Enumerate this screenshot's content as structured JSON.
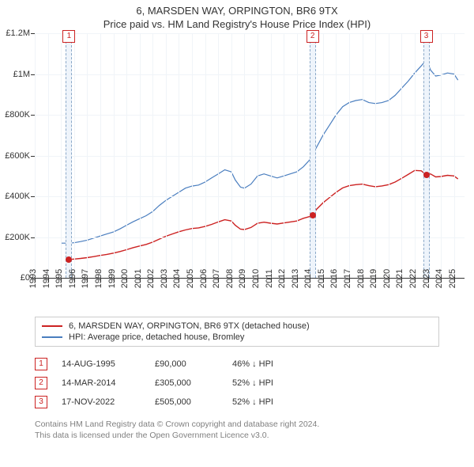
{
  "title": "6, MARSDEN WAY, ORPINGTON, BR6 9TX",
  "subtitle": "Price paid vs. HM Land Registry's House Price Index (HPI)",
  "chart": {
    "type": "line",
    "background_color": "#ffffff",
    "grid_color": "#f0f4f8",
    "axis_color": "#333333",
    "x_start": 1993,
    "x_end": 2025.8,
    "y_min": 0,
    "y_max": 1200000,
    "y_ticks": [
      {
        "v": 0,
        "label": "£0"
      },
      {
        "v": 200000,
        "label": "£200K"
      },
      {
        "v": 400000,
        "label": "£400K"
      },
      {
        "v": 600000,
        "label": "£600K"
      },
      {
        "v": 800000,
        "label": "£800K"
      },
      {
        "v": 1000000,
        "label": "£1M"
      },
      {
        "v": 1200000,
        "label": "£1.2M"
      }
    ],
    "x_ticks": [
      1993,
      1994,
      1995,
      1996,
      1997,
      1998,
      1999,
      2000,
      2001,
      2002,
      2003,
      2004,
      2005,
      2006,
      2007,
      2008,
      2009,
      2010,
      2011,
      2012,
      2013,
      2014,
      2015,
      2016,
      2017,
      2018,
      2019,
      2020,
      2021,
      2022,
      2023,
      2024,
      2025
    ],
    "marker_band_color": "#eef4fb",
    "marker_band_border": "#8aa8c8",
    "marker_badge_color": "#cc2222",
    "series": [
      {
        "name": "hpi",
        "color": "#4a7ebf",
        "width": 1.2,
        "points": [
          [
            1995.0,
            170000
          ],
          [
            1995.5,
            170000
          ],
          [
            1996.0,
            172000
          ],
          [
            1996.5,
            178000
          ],
          [
            1997.0,
            185000
          ],
          [
            1997.5,
            195000
          ],
          [
            1998.0,
            205000
          ],
          [
            1998.5,
            215000
          ],
          [
            1999.0,
            225000
          ],
          [
            1999.5,
            240000
          ],
          [
            2000.0,
            258000
          ],
          [
            2000.5,
            275000
          ],
          [
            2001.0,
            290000
          ],
          [
            2001.5,
            305000
          ],
          [
            2002.0,
            325000
          ],
          [
            2002.5,
            355000
          ],
          [
            2003.0,
            380000
          ],
          [
            2003.5,
            400000
          ],
          [
            2004.0,
            420000
          ],
          [
            2004.5,
            440000
          ],
          [
            2005.0,
            450000
          ],
          [
            2005.5,
            455000
          ],
          [
            2006.0,
            470000
          ],
          [
            2006.5,
            490000
          ],
          [
            2007.0,
            510000
          ],
          [
            2007.5,
            530000
          ],
          [
            2008.0,
            520000
          ],
          [
            2008.3,
            480000
          ],
          [
            2008.7,
            445000
          ],
          [
            2009.0,
            440000
          ],
          [
            2009.5,
            460000
          ],
          [
            2010.0,
            500000
          ],
          [
            2010.5,
            510000
          ],
          [
            2011.0,
            500000
          ],
          [
            2011.5,
            490000
          ],
          [
            2012.0,
            500000
          ],
          [
            2012.5,
            510000
          ],
          [
            2013.0,
            520000
          ],
          [
            2013.5,
            545000
          ],
          [
            2014.0,
            580000
          ],
          [
            2014.5,
            640000
          ],
          [
            2015.0,
            700000
          ],
          [
            2015.5,
            750000
          ],
          [
            2016.0,
            800000
          ],
          [
            2016.5,
            840000
          ],
          [
            2017.0,
            860000
          ],
          [
            2017.5,
            870000
          ],
          [
            2018.0,
            875000
          ],
          [
            2018.5,
            860000
          ],
          [
            2019.0,
            855000
          ],
          [
            2019.5,
            860000
          ],
          [
            2020.0,
            870000
          ],
          [
            2020.5,
            895000
          ],
          [
            2021.0,
            930000
          ],
          [
            2021.5,
            965000
          ],
          [
            2022.0,
            1005000
          ],
          [
            2022.5,
            1040000
          ],
          [
            2022.9,
            1070000
          ],
          [
            2023.2,
            1020000
          ],
          [
            2023.6,
            990000
          ],
          [
            2024.0,
            995000
          ],
          [
            2024.5,
            1005000
          ],
          [
            2025.0,
            1000000
          ],
          [
            2025.3,
            970000
          ]
        ]
      },
      {
        "name": "price-paid",
        "color": "#cc2222",
        "width": 1.4,
        "points": [
          [
            1995.62,
            90000
          ],
          [
            1996.0,
            92000
          ],
          [
            1996.5,
            95000
          ],
          [
            1997.0,
            99000
          ],
          [
            1997.5,
            104000
          ],
          [
            1998.0,
            110000
          ],
          [
            1998.5,
            115000
          ],
          [
            1999.0,
            121000
          ],
          [
            1999.5,
            129000
          ],
          [
            2000.0,
            138000
          ],
          [
            2000.5,
            148000
          ],
          [
            2001.0,
            156000
          ],
          [
            2001.5,
            164000
          ],
          [
            2002.0,
            175000
          ],
          [
            2002.5,
            190000
          ],
          [
            2003.0,
            204000
          ],
          [
            2003.5,
            215000
          ],
          [
            2004.0,
            226000
          ],
          [
            2004.5,
            235000
          ],
          [
            2005.0,
            242000
          ],
          [
            2005.5,
            245000
          ],
          [
            2006.0,
            252000
          ],
          [
            2006.5,
            262000
          ],
          [
            2007.0,
            274000
          ],
          [
            2007.5,
            285000
          ],
          [
            2008.0,
            279000
          ],
          [
            2008.3,
            258000
          ],
          [
            2008.7,
            239000
          ],
          [
            2009.0,
            237000
          ],
          [
            2009.5,
            247000
          ],
          [
            2010.0,
            268000
          ],
          [
            2010.5,
            273000
          ],
          [
            2011.0,
            268000
          ],
          [
            2011.5,
            264000
          ],
          [
            2012.0,
            269000
          ],
          [
            2012.5,
            274000
          ],
          [
            2013.0,
            279000
          ],
          [
            2013.5,
            292000
          ],
          [
            2014.2,
            305000
          ],
          [
            2014.5,
            336000
          ],
          [
            2015.0,
            368000
          ],
          [
            2015.5,
            394000
          ],
          [
            2016.0,
            420000
          ],
          [
            2016.5,
            441000
          ],
          [
            2017.0,
            452000
          ],
          [
            2017.5,
            457000
          ],
          [
            2018.0,
            460000
          ],
          [
            2018.5,
            452000
          ],
          [
            2019.0,
            447000
          ],
          [
            2019.5,
            451000
          ],
          [
            2020.0,
            457000
          ],
          [
            2020.5,
            470000
          ],
          [
            2021.0,
            488000
          ],
          [
            2021.5,
            507000
          ],
          [
            2022.0,
            527000
          ],
          [
            2022.5,
            525000
          ],
          [
            2022.88,
            505000
          ],
          [
            2023.2,
            510000
          ],
          [
            2023.6,
            495000
          ],
          [
            2024.0,
            497000
          ],
          [
            2024.5,
            503000
          ],
          [
            2025.0,
            500000
          ],
          [
            2025.3,
            485000
          ]
        ]
      }
    ],
    "markers": [
      {
        "n": "1",
        "x": 1995.62,
        "y": 90000
      },
      {
        "n": "2",
        "x": 2014.2,
        "y": 305000
      },
      {
        "n": "3",
        "x": 2022.88,
        "y": 505000
      }
    ]
  },
  "legend": [
    {
      "color": "#cc2222",
      "label": "6, MARSDEN WAY, ORPINGTON, BR6 9TX (detached house)"
    },
    {
      "color": "#4a7ebf",
      "label": "HPI: Average price, detached house, Bromley"
    }
  ],
  "sales": [
    {
      "n": "1",
      "date": "14-AUG-1995",
      "price": "£90,000",
      "pct": "46% ↓ HPI"
    },
    {
      "n": "2",
      "date": "14-MAR-2014",
      "price": "£305,000",
      "pct": "52% ↓ HPI"
    },
    {
      "n": "3",
      "date": "17-NOV-2022",
      "price": "£505,000",
      "pct": "52% ↓ HPI"
    }
  ],
  "credits": {
    "line1": "Contains HM Land Registry data © Crown copyright and database right 2024.",
    "line2": "This data is licensed under the Open Government Licence v3.0."
  }
}
